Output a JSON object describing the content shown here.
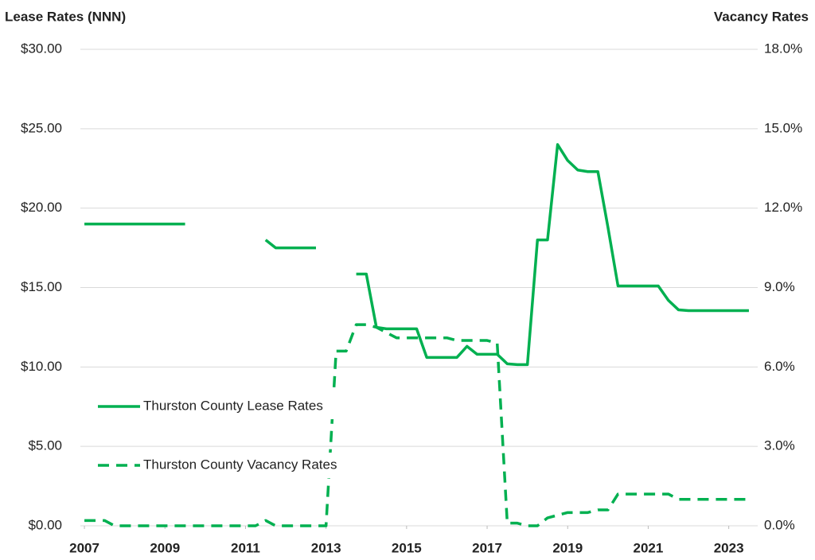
{
  "chart_data": {
    "type": "line",
    "y_label": "Lease Rates (NNN)",
    "y2_label": "Vacancy Rates",
    "x": [
      2007,
      2007.25,
      2007.5,
      2007.75,
      2008,
      2008.25,
      2008.5,
      2008.75,
      2009,
      2009.25,
      2009.5,
      2009.75,
      2010,
      2010.25,
      2010.5,
      2010.75,
      2011,
      2011.25,
      2011.5,
      2011.75,
      2012,
      2012.25,
      2012.5,
      2012.75,
      2013,
      2013.25,
      2013.5,
      2013.75,
      2014,
      2014.25,
      2014.5,
      2014.75,
      2015,
      2015.25,
      2015.5,
      2015.75,
      2016,
      2016.25,
      2016.5,
      2016.75,
      2017,
      2017.25,
      2017.5,
      2017.75,
      2018,
      2018.25,
      2018.5,
      2018.75,
      2019,
      2019.25,
      2019.5,
      2019.75,
      2020,
      2020.25,
      2020.5,
      2020.75,
      2021,
      2021.25,
      2021.5,
      2021.75,
      2022,
      2022.25,
      2022.5,
      2022.75,
      2023,
      2023.25,
      2023.5
    ],
    "xlim": [
      2006.9,
      2023.6
    ],
    "xticks": [
      2007,
      2009,
      2011,
      2013,
      2015,
      2017,
      2019,
      2021,
      2023
    ],
    "ylim": [
      0,
      30
    ],
    "yticks": [
      {
        "value": 0,
        "label": "$0.00"
      },
      {
        "value": 5,
        "label": "$5.00"
      },
      {
        "value": 10,
        "label": "$10.00"
      },
      {
        "value": 15,
        "label": "$15.00"
      },
      {
        "value": 20,
        "label": "$20.00"
      },
      {
        "value": 25,
        "label": "$25.00"
      },
      {
        "value": 30,
        "label": "$30.00"
      }
    ],
    "y2lim": [
      0,
      18
    ],
    "y2ticks": [
      {
        "value": 0,
        "label": "0.0%"
      },
      {
        "value": 3,
        "label": "3.0%"
      },
      {
        "value": 6,
        "label": "6.0%"
      },
      {
        "value": 9,
        "label": "9.0%"
      },
      {
        "value": 12,
        "label": "12.0%"
      },
      {
        "value": 15,
        "label": "15.0%"
      },
      {
        "value": 18,
        "label": "18.0%"
      }
    ],
    "grid": true,
    "series": [
      {
        "name": "Thurston County Lease Rates",
        "color": "#00b050",
        "dash": false,
        "values": [
          19,
          19,
          19,
          19,
          19,
          19,
          19,
          19,
          19,
          19,
          19,
          null,
          null,
          null,
          null,
          null,
          null,
          null,
          18,
          17.5,
          17.5,
          17.5,
          17.5,
          17.5,
          null,
          null,
          null,
          15.85,
          15.85,
          12.5,
          12.4,
          12.4,
          12.4,
          12.4,
          10.6,
          10.6,
          10.6,
          10.6,
          11.3,
          10.8,
          10.8,
          10.8,
          10.2,
          10.15,
          10.15,
          18,
          18,
          24,
          23,
          22.4,
          22.3,
          22.3,
          18.8,
          15.1,
          15.1,
          15.1,
          15.1,
          15.1,
          14.2,
          13.6,
          13.55,
          13.55,
          13.55,
          13.55,
          13.55,
          13.55,
          13.55
        ]
      },
      {
        "name": "Thurston County Vacancy Rates",
        "color": "#00b050",
        "dash": true,
        "axis": "y2",
        "values": [
          0.2,
          0.2,
          0.2,
          0,
          0,
          0,
          0,
          0,
          0,
          0,
          0,
          0,
          0,
          0,
          0,
          0,
          0,
          0,
          0.2,
          0,
          0,
          0,
          0,
          0,
          0,
          6.6,
          6.6,
          7.6,
          7.6,
          7.5,
          7.3,
          7.1,
          7.1,
          7.1,
          7.1,
          7.1,
          7.1,
          7,
          7,
          7,
          7,
          6.9,
          0.1,
          0.1,
          0,
          0,
          0.3,
          0.4,
          0.5,
          0.5,
          0.5,
          0.6,
          0.6,
          1.2,
          1.2,
          1.2,
          1.2,
          1.2,
          1.2,
          1,
          1,
          1,
          1,
          1,
          1,
          1,
          1
        ]
      }
    ]
  }
}
